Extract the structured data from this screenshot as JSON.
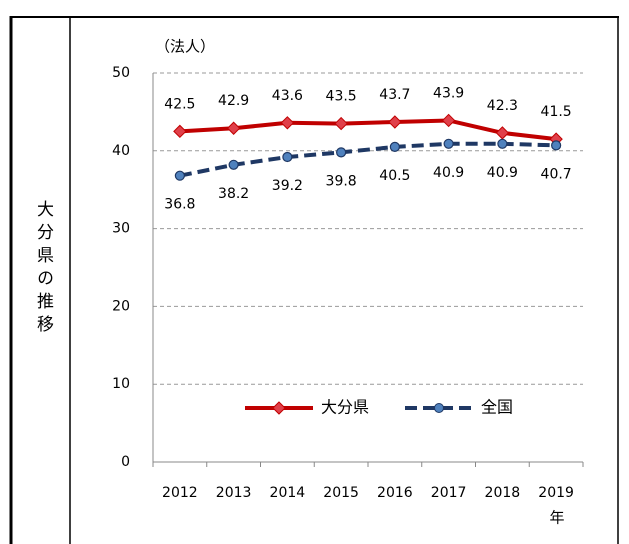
{
  "side_label": "大分県の推移",
  "chart_data": {
    "type": "line",
    "y_label": "（法人）",
    "x_label": "年",
    "categories": [
      "2012",
      "2013",
      "2014",
      "2015",
      "2016",
      "2017",
      "2018",
      "2019"
    ],
    "series": [
      {
        "name": "大分県",
        "color": "#c00000",
        "marker_fill": "#e0404a",
        "dash": false,
        "marker": "diamond",
        "label_pos": "above",
        "values": [
          42.5,
          42.9,
          43.6,
          43.5,
          43.7,
          43.9,
          42.3,
          41.5
        ]
      },
      {
        "name": "全国",
        "color": "#1f3864",
        "marker_fill": "#4f81bd",
        "dash": true,
        "marker": "circle",
        "label_pos": "below",
        "values": [
          36.8,
          38.2,
          39.2,
          39.8,
          40.5,
          40.9,
          40.9,
          40.7
        ]
      }
    ],
    "ylim": [
      0,
      50
    ],
    "yticks": [
      0,
      10,
      20,
      30,
      40,
      50
    ],
    "grid": true,
    "legend": "bottom"
  }
}
